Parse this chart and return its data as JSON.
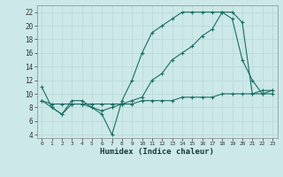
{
  "bg_color": "#cce8e8",
  "line_color": "#1a6e64",
  "grid_color": "#b8d8d8",
  "xlabel": "Humidex (Indice chaleur)",
  "ylabel_ticks": [
    4,
    6,
    8,
    10,
    12,
    14,
    16,
    18,
    20,
    22
  ],
  "xlim": [
    -0.5,
    23.5
  ],
  "ylim": [
    3.5,
    23.0
  ],
  "line1_x": [
    0,
    1,
    2,
    3,
    4,
    5,
    6,
    7,
    8,
    9,
    10,
    11,
    12,
    13,
    14,
    15,
    16,
    17,
    18,
    19,
    20,
    21,
    22,
    23
  ],
  "line1_y": [
    11,
    8,
    7,
    9,
    9,
    8,
    7,
    4,
    9,
    12,
    16,
    19,
    20,
    21,
    22,
    22,
    22,
    22,
    22,
    21,
    15,
    12,
    10,
    10
  ],
  "line2_x": [
    0,
    1,
    2,
    3,
    4,
    5,
    6,
    7,
    8,
    9,
    10,
    11,
    12,
    13,
    14,
    15,
    16,
    17,
    18,
    19,
    20,
    21,
    22,
    23
  ],
  "line2_y": [
    9,
    8,
    7,
    8.5,
    8.5,
    8,
    7.5,
    8,
    8.5,
    9,
    9.5,
    12,
    13,
    15,
    16,
    17,
    18.5,
    19.5,
    22,
    22,
    20.5,
    10,
    10.5,
    10.5
  ],
  "line3_x": [
    0,
    1,
    2,
    3,
    4,
    5,
    6,
    7,
    8,
    9,
    10,
    11,
    12,
    13,
    14,
    15,
    16,
    17,
    18,
    19,
    20,
    21,
    22,
    23
  ],
  "line3_y": [
    9,
    8.5,
    8.5,
    8.5,
    8.5,
    8.5,
    8.5,
    8.5,
    8.5,
    8.5,
    9,
    9,
    9,
    9,
    9.5,
    9.5,
    9.5,
    9.5,
    10,
    10,
    10,
    10,
    10,
    10.5
  ],
  "marker": "+",
  "markersize": 3.0,
  "linewidth": 0.8
}
